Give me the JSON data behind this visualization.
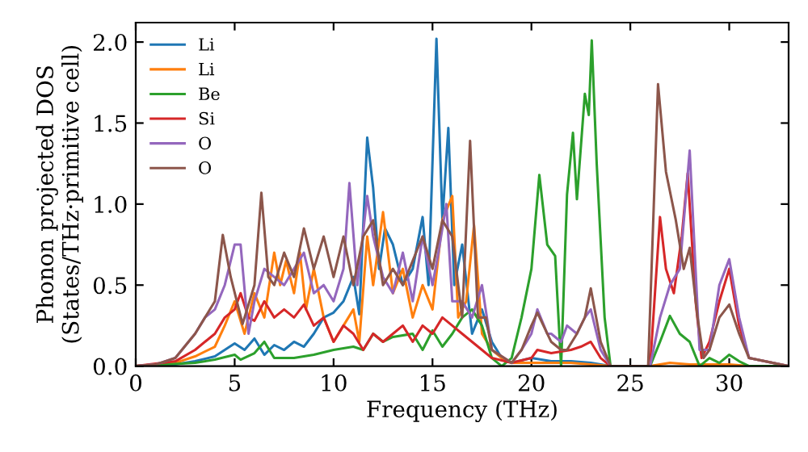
{
  "chart_data": {
    "type": "line",
    "xlabel": "Frequency (THz)",
    "ylabel": "Phonon projected DOS\n(States/THz·primitive cell)",
    "xlim": [
      0,
      33
    ],
    "ylim": [
      0,
      2.12
    ],
    "xticks": [
      0,
      5,
      10,
      15,
      20,
      25,
      30
    ],
    "yticks": [
      {
        "value": 0,
        "label": "0.0"
      },
      {
        "value": 0.5,
        "label": "0.5"
      },
      {
        "value": 1.0,
        "label": "1.0"
      },
      {
        "value": 1.5,
        "label": "1.5"
      },
      {
        "value": 2.0,
        "label": "2.0"
      }
    ],
    "grid": false,
    "legend": "top left",
    "marker": "none",
    "line_style": "solid",
    "series": [
      {
        "name": "Li",
        "color": "#1f77b4",
        "x": [
          0,
          2,
          3,
          4,
          4.5,
          5,
          5.5,
          6,
          6.5,
          7,
          7.5,
          8,
          8.5,
          9,
          9.5,
          10,
          10.5,
          11,
          11.3,
          11.7,
          12,
          12.3,
          12.6,
          13,
          13.5,
          14,
          14.5,
          14.8,
          15.2,
          15.5,
          15.8,
          16.1,
          16.5,
          17,
          17.5,
          18,
          18.5,
          19,
          20,
          21,
          22,
          23,
          23.5,
          24,
          26
        ],
        "values": [
          0,
          0.01,
          0.03,
          0.06,
          0.1,
          0.14,
          0.1,
          0.17,
          0.07,
          0.13,
          0.1,
          0.15,
          0.12,
          0.2,
          0.3,
          0.33,
          0.4,
          0.55,
          0.32,
          1.41,
          1.1,
          0.6,
          0.85,
          0.75,
          0.5,
          0.6,
          0.92,
          0.5,
          2.02,
          0.9,
          1.47,
          0.5,
          0.75,
          0.2,
          0.35,
          0.15,
          0.05,
          0.02,
          0.05,
          0.03,
          0.03,
          0.02,
          0.01,
          0,
          0
        ]
      },
      {
        "name": "Li",
        "color": "#ff7f0e",
        "x": [
          0,
          2,
          3,
          4,
          4.5,
          5,
          5.5,
          6,
          6.5,
          7,
          7.3,
          7.6,
          8,
          8.3,
          8.6,
          9,
          9.5,
          10,
          10.5,
          11,
          11.3,
          11.7,
          12,
          12.5,
          13,
          13.5,
          14,
          14.5,
          15,
          15.5,
          16,
          16.3,
          16.7,
          17.1,
          17.5,
          18,
          18.5,
          19,
          20,
          22,
          24,
          26,
          27,
          28,
          29,
          30,
          31,
          33
        ],
        "values": [
          0,
          0.02,
          0.06,
          0.12,
          0.25,
          0.4,
          0.2,
          0.45,
          0.3,
          0.7,
          0.5,
          0.65,
          0.45,
          0.7,
          0.35,
          0.6,
          0.3,
          0.15,
          0.25,
          0.35,
          0.15,
          0.8,
          0.5,
          0.95,
          0.45,
          0.6,
          0.3,
          0.5,
          0.35,
          0.9,
          1.05,
          0.3,
          0.4,
          0.87,
          0.2,
          0.1,
          0.05,
          0.02,
          0.02,
          0.02,
          0,
          0,
          0.02,
          0.01,
          0.01,
          0.01,
          0,
          0
        ]
      },
      {
        "name": "Be",
        "color": "#2ca02c",
        "x": [
          0,
          3,
          4,
          5,
          5.3,
          6,
          6.5,
          7,
          8,
          9,
          10,
          11,
          11.5,
          12,
          12.5,
          13,
          14,
          14.5,
          15,
          15.5,
          16,
          16.5,
          17,
          17.5,
          18,
          18.5,
          19,
          19.5,
          20,
          20.4,
          20.8,
          21.2,
          21.5,
          21.8,
          22.1,
          22.3,
          22.7,
          22.9,
          23.05,
          23.3,
          23.7,
          24,
          26,
          26.5,
          27,
          27.5,
          28,
          28.5,
          29,
          29.5,
          30,
          30.5,
          31,
          33
        ],
        "values": [
          0,
          0.02,
          0.04,
          0.07,
          0.04,
          0.08,
          0.15,
          0.05,
          0.05,
          0.07,
          0.1,
          0.12,
          0.1,
          0.2,
          0.15,
          0.18,
          0.2,
          0.1,
          0.22,
          0.12,
          0.2,
          0.3,
          0.35,
          0.25,
          0.05,
          0,
          0.05,
          0.3,
          0.6,
          1.18,
          0.75,
          0.68,
          0,
          1.06,
          1.44,
          1.03,
          1.68,
          1.55,
          2.01,
          1.25,
          0.3,
          0,
          0,
          0.15,
          0.31,
          0.2,
          0.15,
          0,
          0.05,
          0.02,
          0.07,
          0.03,
          0,
          0
        ]
      },
      {
        "name": "Si",
        "color": "#d62728",
        "x": [
          0,
          2,
          3,
          4,
          4.5,
          5,
          5.3,
          5.7,
          6,
          6.5,
          7,
          7.5,
          8,
          8.5,
          9,
          9.5,
          10,
          10.5,
          11,
          11.5,
          12,
          12.5,
          13,
          13.5,
          14,
          14.5,
          15,
          15.5,
          16,
          16.5,
          17,
          17.5,
          18,
          19,
          20,
          20.3,
          21,
          22,
          22.5,
          23,
          23.5,
          24,
          26,
          26.5,
          26.8,
          27.2,
          27.6,
          27.9,
          28.3,
          28.6,
          29,
          29.5,
          30,
          30.5,
          31,
          33
        ],
        "values": [
          0,
          0.03,
          0.1,
          0.2,
          0.3,
          0.35,
          0.45,
          0.3,
          0.28,
          0.4,
          0.3,
          0.35,
          0.3,
          0.38,
          0.25,
          0.3,
          0.15,
          0.25,
          0.2,
          0.1,
          0.2,
          0.15,
          0.2,
          0.25,
          0.15,
          0.25,
          0.2,
          0.3,
          0.25,
          0.2,
          0.15,
          0.1,
          0.05,
          0.02,
          0.05,
          0.1,
          0.08,
          0.1,
          0.12,
          0.15,
          0.05,
          0,
          0,
          0.92,
          0.6,
          0.45,
          0.8,
          1.19,
          0.4,
          0.05,
          0.15,
          0.4,
          0.6,
          0.25,
          0.05,
          0
        ]
      },
      {
        "name": "O",
        "color": "#9467bd",
        "x": [
          0,
          1,
          2,
          3,
          3.5,
          4,
          4.5,
          5,
          5.3,
          5.7,
          6,
          6.5,
          7,
          7.5,
          8,
          8.5,
          9,
          9.5,
          10,
          10.5,
          10.8,
          11.2,
          11.7,
          12,
          12.5,
          13,
          13.5,
          14,
          14.5,
          15,
          15.3,
          15.7,
          16,
          16.5,
          17,
          17.5,
          18,
          19,
          19.5,
          20,
          20.3,
          20.8,
          21,
          21.5,
          21.8,
          22.3,
          22.7,
          23,
          23.5,
          24,
          26,
          26.5,
          27,
          27.5,
          28,
          28.5,
          29,
          29.5,
          30,
          30.5,
          31,
          33
        ],
        "values": [
          0,
          0.01,
          0.05,
          0.2,
          0.3,
          0.35,
          0.5,
          0.75,
          0.75,
          0.2,
          0.4,
          0.6,
          0.55,
          0.5,
          0.6,
          0.7,
          0.45,
          0.5,
          0.4,
          0.6,
          1.13,
          0.5,
          1.05,
          0.8,
          0.55,
          0.45,
          0.7,
          0.4,
          0.8,
          0.5,
          0.7,
          1.0,
          0.4,
          0.4,
          0.3,
          0.5,
          0.1,
          0.02,
          0.1,
          0.2,
          0.35,
          0.2,
          0.2,
          0.15,
          0.25,
          0.2,
          0.3,
          0.35,
          0.1,
          0,
          0,
          0.3,
          0.5,
          0.6,
          1.33,
          0.1,
          0.1,
          0.5,
          0.66,
          0.3,
          0.05,
          0
        ]
      },
      {
        "name": "O",
        "color": "#8c564b",
        "x": [
          0,
          1,
          2,
          3,
          3.5,
          4,
          4.4,
          4.8,
          5.4,
          6,
          6.35,
          6.7,
          7,
          7.5,
          8,
          8.5,
          9,
          9.5,
          10,
          10.5,
          11,
          11.5,
          12,
          12.5,
          13,
          13.5,
          14,
          14.5,
          15,
          15.5,
          16,
          16.5,
          16.9,
          17.3,
          17.7,
          18,
          19,
          19.5,
          20,
          20.3,
          20.8,
          21,
          21.5,
          21.8,
          22.3,
          22.7,
          23,
          23.5,
          24,
          25.9,
          26.4,
          26.8,
          27.3,
          27.7,
          28,
          28.4,
          28.7,
          29,
          29.5,
          30,
          30.5,
          31,
          33
        ],
        "values": [
          0,
          0.01,
          0.05,
          0.2,
          0.3,
          0.4,
          0.81,
          0.55,
          0.26,
          0.5,
          1.07,
          0.55,
          0.5,
          0.7,
          0.55,
          0.85,
          0.6,
          0.8,
          0.55,
          0.8,
          0.5,
          0.8,
          0.9,
          0.5,
          0.6,
          0.5,
          0.65,
          0.8,
          0.6,
          0.9,
          0.8,
          0.3,
          1.39,
          0.3,
          0.3,
          0.1,
          0.02,
          0.1,
          0.25,
          0.33,
          0.2,
          0.15,
          0.1,
          0.1,
          0.2,
          0.3,
          0.48,
          0.15,
          0,
          0,
          1.74,
          1.2,
          0.9,
          0.6,
          0.73,
          0.3,
          0.05,
          0.1,
          0.3,
          0.38,
          0.2,
          0.05,
          0
        ]
      }
    ]
  }
}
